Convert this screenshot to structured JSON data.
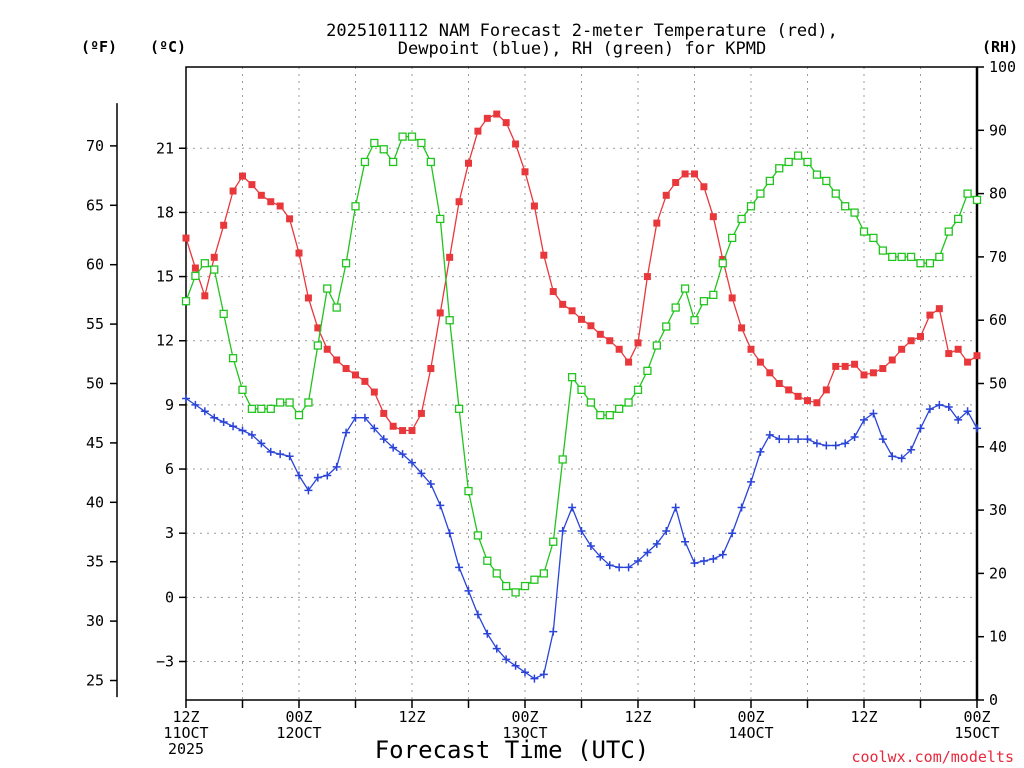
{
  "chart_data": {
    "type": "line",
    "title_line1": "2025101112 NAM Forecast 2-meter Temperature (red),",
    "title_line2": "Dewpoint (blue), RH (green) for KPMD",
    "units": {
      "fahrenheit": "(ºF)",
      "celsius": "(ºC)",
      "rh": "(RH)"
    },
    "xlabel": "Forecast Time (UTC)",
    "credit": "coolwx.com/modelts",
    "x_range_hours": [
      0,
      84
    ],
    "celsius_range": [
      -4.8,
      24.8
    ],
    "rh_range": [
      0,
      100
    ],
    "celsius_ticks": [
      -3,
      0,
      3,
      6,
      9,
      12,
      15,
      18,
      21
    ],
    "fahrenheit_ticks": [
      25,
      30,
      35,
      40,
      45,
      50,
      55,
      60,
      65,
      70
    ],
    "rh_ticks": [
      0,
      10,
      20,
      30,
      40,
      50,
      60,
      70,
      80,
      90,
      100
    ],
    "x_ticks": [
      {
        "hour": 0,
        "lines": [
          "12Z",
          "11OCT",
          "2025"
        ]
      },
      {
        "hour": 12,
        "lines": [
          "00Z",
          "12OCT"
        ]
      },
      {
        "hour": 24,
        "lines": [
          "12Z"
        ]
      },
      {
        "hour": 36,
        "lines": [
          "00Z",
          "13OCT"
        ]
      },
      {
        "hour": 48,
        "lines": [
          "12Z"
        ]
      },
      {
        "hour": 60,
        "lines": [
          "00Z",
          "14OCT"
        ]
      },
      {
        "hour": 72,
        "lines": [
          "12Z"
        ]
      },
      {
        "hour": 84,
        "lines": [
          "00Z",
          "15OCT"
        ]
      }
    ],
    "series": [
      {
        "name": "Temperature",
        "unit": "C",
        "color": "#e8383c",
        "marker": "filled-square",
        "x": [
          0,
          1,
          2,
          3,
          4,
          5,
          6,
          7,
          8,
          9,
          10,
          11,
          12,
          13,
          14,
          15,
          16,
          17,
          18,
          19,
          20,
          21,
          22,
          23,
          24,
          25,
          26,
          27,
          28,
          29,
          30,
          31,
          32,
          33,
          34,
          35,
          36,
          37,
          38,
          39,
          40,
          41,
          42,
          43,
          44,
          45,
          46,
          47,
          48,
          49,
          50,
          51,
          52,
          53,
          54,
          55,
          56,
          57,
          58,
          59,
          60,
          61,
          62,
          63,
          64,
          65,
          66,
          67,
          68,
          69,
          70,
          71,
          72,
          73,
          74,
          75,
          76,
          77,
          78,
          79,
          80,
          81,
          82,
          83,
          84
        ],
        "values": [
          16.8,
          15.4,
          14.1,
          15.9,
          17.4,
          19.0,
          19.7,
          19.3,
          18.8,
          18.5,
          18.3,
          17.7,
          16.1,
          14.0,
          12.6,
          11.6,
          11.1,
          10.7,
          10.4,
          10.1,
          9.6,
          8.6,
          8.0,
          7.8,
          7.8,
          8.6,
          10.7,
          13.3,
          15.9,
          18.5,
          20.3,
          21.8,
          22.4,
          22.6,
          22.2,
          21.2,
          19.9,
          18.3,
          16.0,
          14.3,
          13.7,
          13.4,
          13.0,
          12.7,
          12.3,
          12.0,
          11.6,
          11.0,
          11.9,
          15.0,
          17.5,
          18.8,
          19.4,
          19.8,
          19.8,
          19.2,
          17.8,
          15.8,
          14.0,
          12.6,
          11.6,
          11.0,
          10.5,
          10.0,
          9.7,
          9.4,
          9.2,
          9.1,
          9.7,
          10.8,
          10.8,
          10.9,
          10.4,
          10.5,
          10.7,
          11.1,
          11.6,
          12.0,
          12.2,
          13.2,
          13.5,
          11.4,
          11.6,
          11.0,
          11.3
        ]
      },
      {
        "name": "Dewpoint",
        "unit": "C",
        "color": "#2a44d8",
        "marker": "plus",
        "x": [
          0,
          1,
          2,
          3,
          4,
          5,
          6,
          7,
          8,
          9,
          10,
          11,
          12,
          13,
          14,
          15,
          16,
          17,
          18,
          19,
          20,
          21,
          22,
          23,
          24,
          25,
          26,
          27,
          28,
          29,
          30,
          31,
          32,
          33,
          34,
          35,
          36,
          37,
          38,
          39,
          40,
          41,
          42,
          43,
          44,
          45,
          46,
          47,
          48,
          49,
          50,
          51,
          52,
          53,
          54,
          55,
          56,
          57,
          58,
          59,
          60,
          61,
          62,
          63,
          64,
          65,
          66,
          67,
          68,
          69,
          70,
          71,
          72,
          73,
          74,
          75,
          76,
          77,
          78,
          79,
          80,
          81,
          82,
          83,
          84
        ],
        "values": [
          9.3,
          9.0,
          8.7,
          8.4,
          8.2,
          8.0,
          7.8,
          7.6,
          7.2,
          6.8,
          6.7,
          6.6,
          5.7,
          5.0,
          5.6,
          5.7,
          6.1,
          7.7,
          8.4,
          8.4,
          7.9,
          7.4,
          7.0,
          6.7,
          6.3,
          5.8,
          5.3,
          4.3,
          3.0,
          1.4,
          0.3,
          -0.8,
          -1.7,
          -2.4,
          -2.9,
          -3.2,
          -3.5,
          -3.8,
          -3.6,
          -1.6,
          3.1,
          4.2,
          3.1,
          2.4,
          1.9,
          1.5,
          1.4,
          1.4,
          1.7,
          2.1,
          2.5,
          3.1,
          4.2,
          2.6,
          1.6,
          1.7,
          1.8,
          2.0,
          3.0,
          4.2,
          5.4,
          6.8,
          7.6,
          7.4,
          7.4,
          7.4,
          7.4,
          7.2,
          7.1,
          7.1,
          7.2,
          7.5,
          8.3,
          8.6,
          7.4,
          6.6,
          6.5,
          6.9,
          7.9,
          8.8,
          9.0,
          8.9,
          8.3,
          8.7,
          7.9
        ]
      },
      {
        "name": "Relative Humidity",
        "unit": "%",
        "color": "#22c41e",
        "marker": "open-square",
        "x": [
          0,
          1,
          2,
          3,
          4,
          5,
          6,
          7,
          8,
          9,
          10,
          11,
          12,
          13,
          14,
          15,
          16,
          17,
          18,
          19,
          20,
          21,
          22,
          23,
          24,
          25,
          26,
          27,
          28,
          29,
          30,
          31,
          32,
          33,
          34,
          35,
          36,
          37,
          38,
          39,
          40,
          41,
          42,
          43,
          44,
          45,
          46,
          47,
          48,
          49,
          50,
          51,
          52,
          53,
          54,
          55,
          56,
          57,
          58,
          59,
          60,
          61,
          62,
          63,
          64,
          65,
          66,
          67,
          68,
          69,
          70,
          71,
          72,
          73,
          74,
          75,
          76,
          77,
          78,
          79,
          80,
          81,
          82,
          83,
          84
        ],
        "values": [
          63,
          67,
          69,
          68,
          61,
          54,
          49,
          46,
          46,
          46,
          47,
          47,
          45,
          47,
          56,
          65,
          62,
          69,
          78,
          85,
          88,
          87,
          85,
          89,
          89,
          88,
          85,
          76,
          60,
          46,
          33,
          26,
          22,
          20,
          18,
          17,
          18,
          19,
          20,
          25,
          38,
          51,
          49,
          47,
          45,
          45,
          46,
          47,
          49,
          52,
          56,
          59,
          62,
          65,
          60,
          63,
          64,
          69,
          73,
          76,
          78,
          80,
          82,
          84,
          85,
          86,
          85,
          83,
          82,
          80,
          78,
          77,
          74,
          73,
          71,
          70,
          70,
          70,
          69,
          69,
          70,
          74,
          76,
          80,
          79
        ]
      }
    ]
  }
}
